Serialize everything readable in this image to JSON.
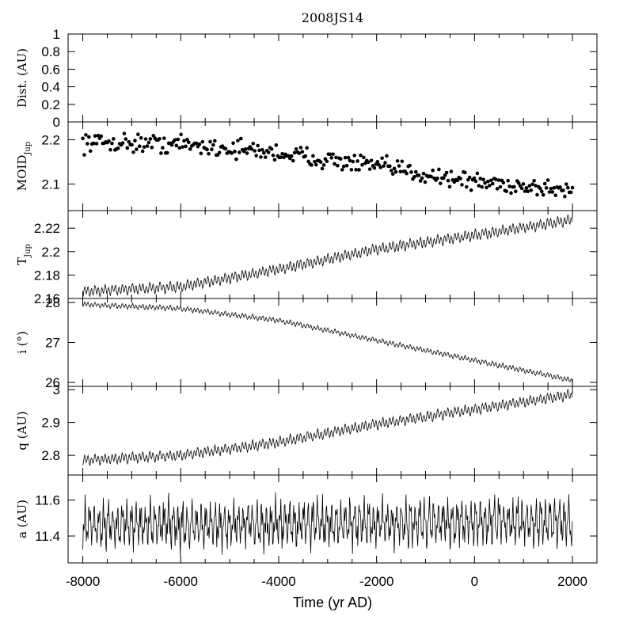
{
  "figure": {
    "title": "2008JS14",
    "xlabel": "Time (yr AD)"
  },
  "chart_data": [
    {
      "type": "line",
      "title": "2008JS14",
      "ylabel": "Dist. (AU)",
      "xlim": [
        -8300,
        2500
      ],
      "ylim": [
        0,
        1
      ],
      "yticks": [
        0,
        0.2,
        0.4,
        0.6,
        0.8,
        1
      ],
      "ytick_labels": [
        "0",
        "0.2",
        "0.4",
        "0.6",
        "0.8",
        "1"
      ],
      "series": []
    },
    {
      "type": "scatter",
      "ylabel": "MOID",
      "ylabel_sub": "Jup",
      "xlim": [
        -8300,
        2500
      ],
      "ylim": [
        2.04,
        2.24
      ],
      "yticks": [
        2.1,
        2.2
      ],
      "ytick_labels": [
        "2.1",
        "2.2"
      ],
      "trend": {
        "x": [
          -8000,
          -6000,
          -4000,
          -2000,
          0,
          2000
        ],
        "y": [
          2.195,
          2.19,
          2.17,
          2.14,
          2.105,
          2.085
        ]
      },
      "scatter": 0.016,
      "n_points": 320
    },
    {
      "type": "line",
      "ylabel": "T",
      "ylabel_sub": "Jup",
      "xlim": [
        -8300,
        2500
      ],
      "ylim": [
        2.16,
        2.235
      ],
      "yticks": [
        2.16,
        2.18,
        2.2,
        2.22
      ],
      "ytick_labels": [
        "2.16",
        "2.18",
        "2.2",
        "2.22"
      ],
      "trend": {
        "x": [
          -8000,
          -6000,
          -4000,
          -2000,
          0,
          2000
        ],
        "y": [
          2.166,
          2.17,
          2.185,
          2.202,
          2.214,
          2.227
        ]
      },
      "osc_amp": 0.0035,
      "osc_period": 70
    },
    {
      "type": "line",
      "ylabel": "i (°)",
      "xlim": [
        -8300,
        2500
      ],
      "ylim": [
        25.9,
        28.1
      ],
      "yticks": [
        26,
        27,
        28
      ],
      "ytick_labels": [
        "26",
        "27",
        "28"
      ],
      "trend": {
        "x": [
          -8000,
          -6000,
          -4000,
          -2000,
          0,
          2000
        ],
        "y": [
          27.95,
          27.85,
          27.55,
          27.05,
          26.55,
          26.05
        ]
      },
      "osc_amp": 0.05,
      "osc_period": 70
    },
    {
      "type": "line",
      "ylabel": "q (AU)",
      "xlim": [
        -8300,
        2500
      ],
      "ylim": [
        2.74,
        3.01
      ],
      "yticks": [
        2.8,
        2.9,
        3
      ],
      "ytick_labels": [
        "2.8",
        "2.9",
        "3"
      ],
      "trend": {
        "x": [
          -8000,
          -6000,
          -4000,
          -2000,
          0,
          2000
        ],
        "y": [
          2.785,
          2.8,
          2.84,
          2.895,
          2.94,
          2.985
        ]
      },
      "osc_amp": 0.012,
      "osc_period": 70
    },
    {
      "type": "line",
      "ylabel": "a (AU)",
      "xlim": [
        -8300,
        2500
      ],
      "ylim": [
        11.25,
        11.74
      ],
      "yticks": [
        11.4,
        11.6
      ],
      "ytick_labels": [
        "11.4",
        "11.6"
      ],
      "trend": {
        "x": [
          -8000,
          2000
        ],
        "y": [
          11.46,
          11.48
        ]
      },
      "osc_amp": 0.12,
      "osc_period": 95,
      "xticks": [
        -8000,
        -6000,
        -4000,
        -2000,
        0,
        2000
      ],
      "xtick_labels": [
        "-8000",
        "-6000",
        "-4000",
        "-2000",
        "0",
        "2000"
      ]
    }
  ]
}
